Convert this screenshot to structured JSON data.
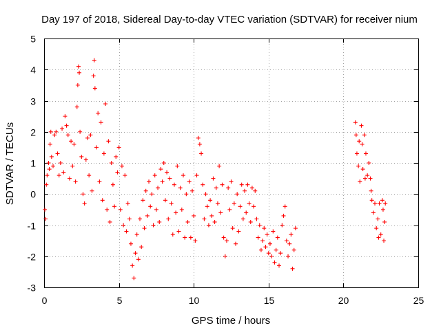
{
  "chart_data": {
    "type": "scatter",
    "title": "Day 197 of 2018, Sidereal Day-to-day VTEC variation (SDTVAR) for receiver nium",
    "xlabel": "GPS time / hours",
    "ylabel": "SDTVAR / TECUs",
    "xlim": [
      0,
      25
    ],
    "ylim": [
      -3,
      5
    ],
    "xticks": [
      "0",
      "5",
      "10",
      "15",
      "20",
      "25"
    ],
    "yticks": [
      "-3",
      "-2",
      "-1",
      "0",
      "1",
      "2",
      "3",
      "4",
      "5"
    ],
    "grid": true,
    "marker": "plus",
    "color": "#ff0000",
    "series": [
      {
        "name": "SDTVAR",
        "points": [
          [
            0.05,
            -0.5
          ],
          [
            0.1,
            -0.8
          ],
          [
            0.15,
            0.3
          ],
          [
            0.2,
            0.6
          ],
          [
            0.3,
            1.0
          ],
          [
            0.35,
            0.8
          ],
          [
            0.4,
            1.6
          ],
          [
            0.45,
            2.0
          ],
          [
            0.5,
            1.2
          ],
          [
            0.6,
            0.9
          ],
          [
            0.7,
            1.9
          ],
          [
            0.8,
            2.0
          ],
          [
            0.9,
            1.3
          ],
          [
            1.0,
            0.6
          ],
          [
            1.1,
            1.0
          ],
          [
            1.2,
            2.1
          ],
          [
            1.3,
            0.7
          ],
          [
            1.4,
            2.5
          ],
          [
            1.5,
            2.2
          ],
          [
            1.6,
            1.9
          ],
          [
            1.7,
            0.5
          ],
          [
            1.8,
            1.7
          ],
          [
            1.9,
            0.9
          ],
          [
            2.0,
            1.6
          ],
          [
            2.1,
            0.4
          ],
          [
            2.2,
            2.8
          ],
          [
            2.25,
            3.5
          ],
          [
            2.3,
            4.1
          ],
          [
            2.35,
            3.9
          ],
          [
            2.4,
            2.0
          ],
          [
            2.5,
            1.2
          ],
          [
            2.6,
            0.0
          ],
          [
            2.7,
            -0.3
          ],
          [
            2.8,
            1.1
          ],
          [
            2.9,
            1.8
          ],
          [
            3.0,
            0.6
          ],
          [
            3.1,
            1.9
          ],
          [
            3.2,
            0.1
          ],
          [
            3.3,
            3.8
          ],
          [
            3.35,
            4.3
          ],
          [
            3.4,
            3.4
          ],
          [
            3.5,
            1.5
          ],
          [
            3.6,
            2.6
          ],
          [
            3.7,
            0.4
          ],
          [
            3.8,
            2.3
          ],
          [
            3.9,
            -0.2
          ],
          [
            4.0,
            1.3
          ],
          [
            4.1,
            2.9
          ],
          [
            4.2,
            -0.5
          ],
          [
            4.3,
            1.7
          ],
          [
            4.4,
            -0.9
          ],
          [
            4.5,
            1.0
          ],
          [
            4.6,
            0.3
          ],
          [
            4.7,
            -0.4
          ],
          [
            4.8,
            1.2
          ],
          [
            4.9,
            0.7
          ],
          [
            5.0,
            1.5
          ],
          [
            5.1,
            -0.5
          ],
          [
            5.2,
            0.9
          ],
          [
            5.3,
            -1.0
          ],
          [
            5.4,
            0.6
          ],
          [
            5.5,
            -1.2
          ],
          [
            5.6,
            -0.3
          ],
          [
            5.7,
            -0.8
          ],
          [
            5.8,
            -1.6
          ],
          [
            5.9,
            -2.3
          ],
          [
            6.0,
            -2.7
          ],
          [
            6.1,
            -1.9
          ],
          [
            6.2,
            -1.3
          ],
          [
            6.3,
            -2.1
          ],
          [
            6.4,
            -0.8
          ],
          [
            6.5,
            -1.7
          ],
          [
            6.6,
            -0.2
          ],
          [
            6.7,
            -1.1
          ],
          [
            6.8,
            0.1
          ],
          [
            6.9,
            -0.7
          ],
          [
            7.0,
            0.4
          ],
          [
            7.1,
            -0.4
          ],
          [
            7.2,
            0.0
          ],
          [
            7.3,
            -1.0
          ],
          [
            7.4,
            0.6
          ],
          [
            7.5,
            -0.5
          ],
          [
            7.6,
            0.2
          ],
          [
            7.7,
            -0.9
          ],
          [
            7.8,
            0.8
          ],
          [
            7.9,
            0.4
          ],
          [
            8.0,
            1.0
          ],
          [
            8.1,
            -0.2
          ],
          [
            8.2,
            0.7
          ],
          [
            8.3,
            -0.8
          ],
          [
            8.4,
            0.5
          ],
          [
            8.5,
            -0.3
          ],
          [
            8.6,
            -1.3
          ],
          [
            8.7,
            0.3
          ],
          [
            8.8,
            -0.6
          ],
          [
            8.9,
            0.9
          ],
          [
            9.0,
            -1.2
          ],
          [
            9.1,
            0.2
          ],
          [
            9.2,
            -0.5
          ],
          [
            9.3,
            0.6
          ],
          [
            9.4,
            -1.4
          ],
          [
            9.5,
            0.0
          ],
          [
            9.6,
            -0.9
          ],
          [
            9.7,
            0.4
          ],
          [
            9.8,
            -1.4
          ],
          [
            9.9,
            0.1
          ],
          [
            10.0,
            -0.7
          ],
          [
            10.1,
            -1.5
          ],
          [
            10.2,
            0.6
          ],
          [
            10.3,
            1.8
          ],
          [
            10.4,
            1.6
          ],
          [
            10.5,
            1.3
          ],
          [
            10.6,
            0.3
          ],
          [
            10.7,
            -0.8
          ],
          [
            10.8,
            0.0
          ],
          [
            10.9,
            -0.4
          ],
          [
            11.0,
            -1.0
          ],
          [
            11.1,
            -0.2
          ],
          [
            11.2,
            -0.7
          ],
          [
            11.3,
            0.5
          ],
          [
            11.4,
            -0.9
          ],
          [
            11.5,
            0.2
          ],
          [
            11.6,
            -0.3
          ],
          [
            11.7,
            0.9
          ],
          [
            11.8,
            -0.6
          ],
          [
            11.9,
            0.3
          ],
          [
            12.0,
            -1.4
          ],
          [
            12.1,
            -2.0
          ],
          [
            12.2,
            -1.5
          ],
          [
            12.3,
            0.2
          ],
          [
            12.4,
            -0.5
          ],
          [
            12.5,
            0.4
          ],
          [
            12.6,
            -1.1
          ],
          [
            12.7,
            -0.3
          ],
          [
            12.8,
            -1.6
          ],
          [
            12.9,
            0.0
          ],
          [
            13.0,
            -1.2
          ],
          [
            13.1,
            -0.4
          ],
          [
            13.2,
            0.3
          ],
          [
            13.3,
            -0.8
          ],
          [
            13.4,
            0.1
          ],
          [
            13.5,
            -0.6
          ],
          [
            13.6,
            0.3
          ],
          [
            13.7,
            -0.3
          ],
          [
            13.8,
            -0.9
          ],
          [
            13.9,
            0.2
          ],
          [
            14.0,
            -0.4
          ],
          [
            14.1,
            0.1
          ],
          [
            14.2,
            -0.8
          ],
          [
            14.3,
            -1.4
          ],
          [
            14.4,
            -1.0
          ],
          [
            14.5,
            -1.8
          ],
          [
            14.6,
            -1.5
          ],
          [
            14.7,
            -1.1
          ],
          [
            14.8,
            -1.7
          ],
          [
            14.9,
            -1.3
          ],
          [
            15.0,
            -1.9
          ],
          [
            15.1,
            -1.6
          ],
          [
            15.2,
            -2.0
          ],
          [
            15.3,
            -1.2
          ],
          [
            15.4,
            -2.2
          ],
          [
            15.5,
            -1.8
          ],
          [
            15.6,
            -1.4
          ],
          [
            15.7,
            -2.3
          ],
          [
            15.8,
            -1.9
          ],
          [
            15.9,
            -1.0
          ],
          [
            16.0,
            -0.7
          ],
          [
            16.1,
            -0.4
          ],
          [
            16.2,
            -1.5
          ],
          [
            16.3,
            -2.0
          ],
          [
            16.4,
            -1.6
          ],
          [
            16.5,
            -1.3
          ],
          [
            16.6,
            -2.4
          ],
          [
            16.7,
            -1.8
          ],
          [
            16.8,
            -1.1
          ],
          [
            20.8,
            2.3
          ],
          [
            20.85,
            1.9
          ],
          [
            20.9,
            1.3
          ],
          [
            21.0,
            0.9
          ],
          [
            21.05,
            1.7
          ],
          [
            21.1,
            0.4
          ],
          [
            21.2,
            2.2
          ],
          [
            21.25,
            1.6
          ],
          [
            21.3,
            0.8
          ],
          [
            21.4,
            1.9
          ],
          [
            21.45,
            0.5
          ],
          [
            21.5,
            1.3
          ],
          [
            21.6,
            0.6
          ],
          [
            21.7,
            1.0
          ],
          [
            21.8,
            0.5
          ],
          [
            21.85,
            0.1
          ],
          [
            21.9,
            -0.2
          ],
          [
            22.0,
            -0.6
          ],
          [
            22.1,
            -0.3
          ],
          [
            22.2,
            -1.1
          ],
          [
            22.3,
            -0.8
          ],
          [
            22.35,
            -1.4
          ],
          [
            22.4,
            -0.3
          ],
          [
            22.5,
            -1.3
          ],
          [
            22.6,
            -0.2
          ],
          [
            22.65,
            -0.5
          ],
          [
            22.7,
            -1.5
          ],
          [
            22.75,
            -0.9
          ],
          [
            22.8,
            -0.3
          ]
        ]
      }
    ]
  }
}
